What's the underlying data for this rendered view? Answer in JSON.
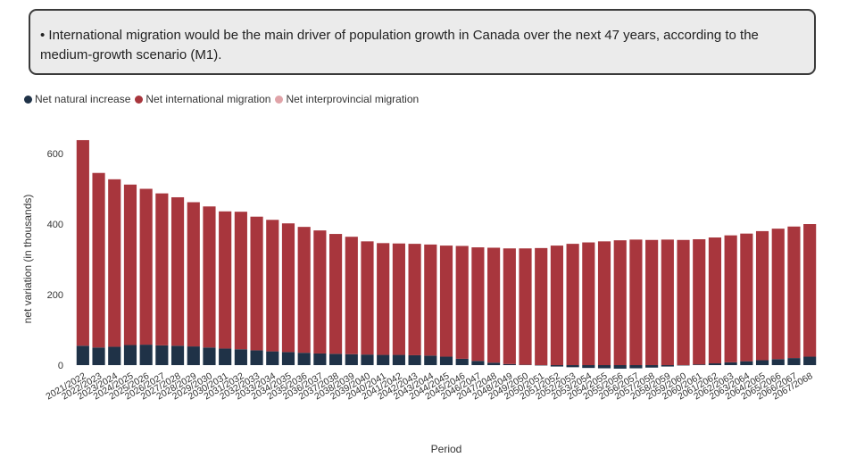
{
  "note": {
    "text": "• International migration would be the main driver of population growth in Canada over the next 47 years, according to the medium-growth scenario (M1)."
  },
  "colors": {
    "natural": "#1f3247",
    "international": "#a8363d",
    "interprovincial": "#e0a3a8",
    "axis_text": "#333333",
    "zero_line": "#777777"
  },
  "chart_data": {
    "type": "bar",
    "stacked": true,
    "title": "",
    "xlabel": "Period",
    "ylabel": "net variation (in thousands)",
    "ylim": [
      0,
      680
    ],
    "yticks": [
      0,
      200,
      400,
      600
    ],
    "grid": false,
    "legend_position": "top-left",
    "categories": [
      "2021/2022",
      "2022/2023",
      "2023/2024",
      "2024/2025",
      "2025/2026",
      "2026/2027",
      "2027/2028",
      "2028/2029",
      "2029/2030",
      "2030/2031",
      "2031/2032",
      "2032/2033",
      "2033/2034",
      "2034/2035",
      "2035/2036",
      "2036/2037",
      "2037/2038",
      "2038/2039",
      "2039/2040",
      "2040/2041",
      "2041/2042",
      "2042/2043",
      "2043/2044",
      "2044/2045",
      "2045/2046",
      "2046/2047",
      "2047/2048",
      "2048/2049",
      "2049/2050",
      "2050/2051",
      "2051/2052",
      "2052/2053",
      "2053/2054",
      "2054/2055",
      "2055/2056",
      "2056/2057",
      "2057/2058",
      "2058/2059",
      "2059/2060",
      "2060/2061",
      "2061/2062",
      "2062/2063",
      "2063/2064",
      "2064/2065",
      "2065/2066",
      "2066/2067",
      "2067/2068"
    ],
    "series": [
      {
        "name": "Net natural increase",
        "color_key": "natural",
        "values": [
          55,
          50,
          52,
          57,
          58,
          56,
          55,
          53,
          50,
          47,
          45,
          42,
          39,
          37,
          35,
          33,
          32,
          31,
          30,
          29,
          29,
          28,
          27,
          24,
          18,
          12,
          7,
          3,
          1,
          -1,
          -4,
          -6,
          -8,
          -9,
          -10,
          -9,
          -7,
          -4,
          -1,
          2,
          5,
          8,
          11,
          14,
          17,
          20,
          24
        ]
      },
      {
        "name": "Net international migration",
        "color_key": "international",
        "values": [
          583,
          495,
          475,
          455,
          442,
          431,
          421,
          409,
          400,
          389,
          390,
          379,
          373,
          365,
          357,
          349,
          340,
          333,
          321,
          317,
          316,
          316,
          315,
          315,
          320,
          322,
          326,
          328,
          330,
          332,
          339,
          344,
          348,
          351,
          354,
          356,
          355,
          356,
          355,
          355,
          357,
          360,
          362,
          366,
          370,
          373,
          376
        ]
      },
      {
        "name": "Net interprovincial migration",
        "color_key": "interprovincial",
        "values": [
          0,
          0,
          0,
          0,
          0,
          0,
          0,
          0,
          0,
          0,
          0,
          0,
          0,
          0,
          0,
          0,
          0,
          0,
          0,
          0,
          0,
          0,
          0,
          0,
          0,
          0,
          0,
          0,
          0,
          0,
          0,
          0,
          0,
          0,
          0,
          0,
          0,
          0,
          0,
          0,
          0,
          0,
          0,
          0,
          0,
          0,
          0
        ]
      }
    ]
  }
}
